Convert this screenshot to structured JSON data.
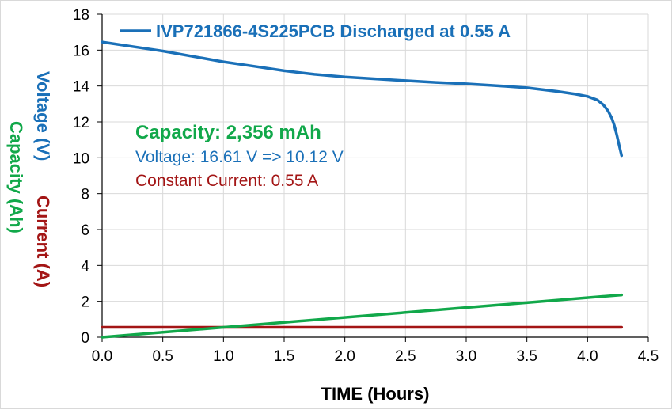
{
  "chart_data": {
    "type": "line",
    "title": "IVP721866-4S225PCB Discharged at 0.55 A",
    "xlabel": "TIME (Hours)",
    "ylabels": [
      {
        "text": "Voltage (V)",
        "color": "#1a70b8"
      },
      {
        "text": "Current (A)",
        "color": "#a31515"
      },
      {
        "text": "Capacity (Ah)",
        "color": "#11a84a"
      }
    ],
    "xlim": [
      0,
      4.5
    ],
    "ylim": [
      0,
      18
    ],
    "x_ticks": [
      "0.0",
      "0.5",
      "1.0",
      "1.5",
      "2.0",
      "2.5",
      "3.0",
      "3.5",
      "4.0",
      "4.5"
    ],
    "y_ticks": [
      "0",
      "2",
      "4",
      "6",
      "8",
      "10",
      "12",
      "14",
      "16",
      "18"
    ],
    "grid": true,
    "legend": {
      "position": "top",
      "entries": [
        "IVP721866-4S225PCB Discharged at 0.55 A"
      ]
    },
    "annotations": [
      {
        "text": "Capacity: 2,356 mAh",
        "color": "#11a84a",
        "bold": true
      },
      {
        "text": "Voltage: 16.61 V => 10.12 V",
        "color": "#1a70b8",
        "bold": false
      },
      {
        "text": "Constant Current: 0.55 A",
        "color": "#a31515",
        "bold": false
      }
    ],
    "series": [
      {
        "name": "IVP721866-4S225PCB Discharged at 0.55 A",
        "color": "#1a70b8",
        "x": [
          0,
          0.1,
          0.25,
          0.5,
          0.75,
          1.0,
          1.25,
          1.5,
          1.75,
          2.0,
          2.25,
          2.5,
          2.75,
          3.0,
          3.25,
          3.5,
          3.75,
          3.9,
          4.0,
          4.08,
          4.13,
          4.17,
          4.2,
          4.22,
          4.24,
          4.26,
          4.28
        ],
        "y": [
          16.45,
          16.35,
          16.2,
          15.95,
          15.65,
          15.35,
          15.1,
          14.85,
          14.65,
          14.5,
          14.4,
          14.3,
          14.2,
          14.12,
          14.02,
          13.9,
          13.7,
          13.55,
          13.42,
          13.22,
          12.95,
          12.6,
          12.2,
          11.8,
          11.3,
          10.7,
          10.12
        ]
      },
      {
        "color": "#a31515",
        "x": [
          0,
          4.28
        ],
        "y": [
          0.55,
          0.55
        ]
      },
      {
        "color": "#11a84a",
        "x": [
          0,
          4.28
        ],
        "y": [
          0,
          2.356
        ]
      }
    ]
  }
}
